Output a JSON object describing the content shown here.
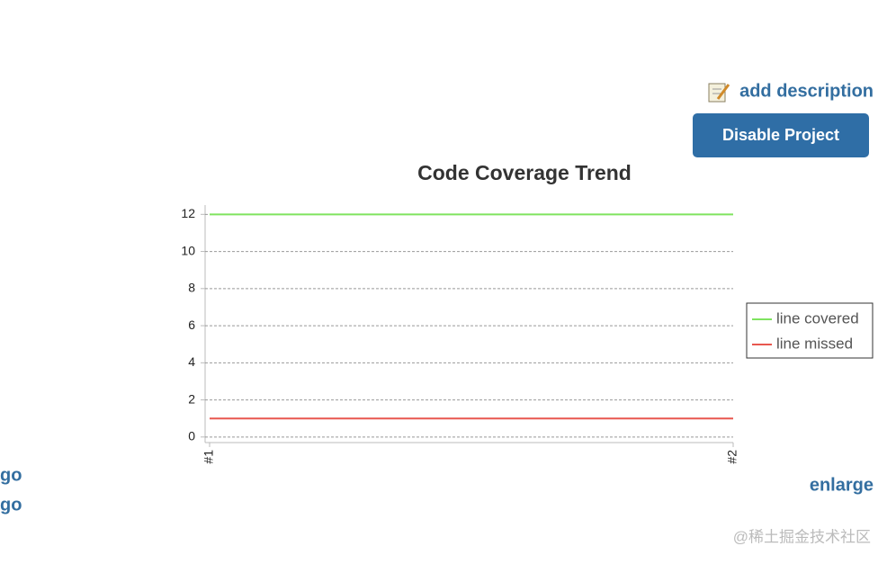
{
  "header": {
    "add_description": "add description",
    "button": "Disable Project"
  },
  "chart_data": {
    "type": "line",
    "title": "Code Coverage Trend",
    "categories": [
      "#1",
      "#2"
    ],
    "series": [
      {
        "name": "line covered",
        "color": "#7fe35f",
        "values": [
          12,
          12
        ]
      },
      {
        "name": "line missed",
        "color": "#e8574f",
        "values": [
          1,
          1
        ]
      }
    ],
    "ylim": [
      -0.3,
      12.5
    ],
    "yticks": [
      0,
      2,
      4,
      6,
      8,
      10,
      12
    ],
    "grid": true,
    "legend": "right"
  },
  "side_links": [
    "go",
    "go"
  ],
  "enlarge": "enlarge",
  "watermark": "@稀土掘金技术社区"
}
